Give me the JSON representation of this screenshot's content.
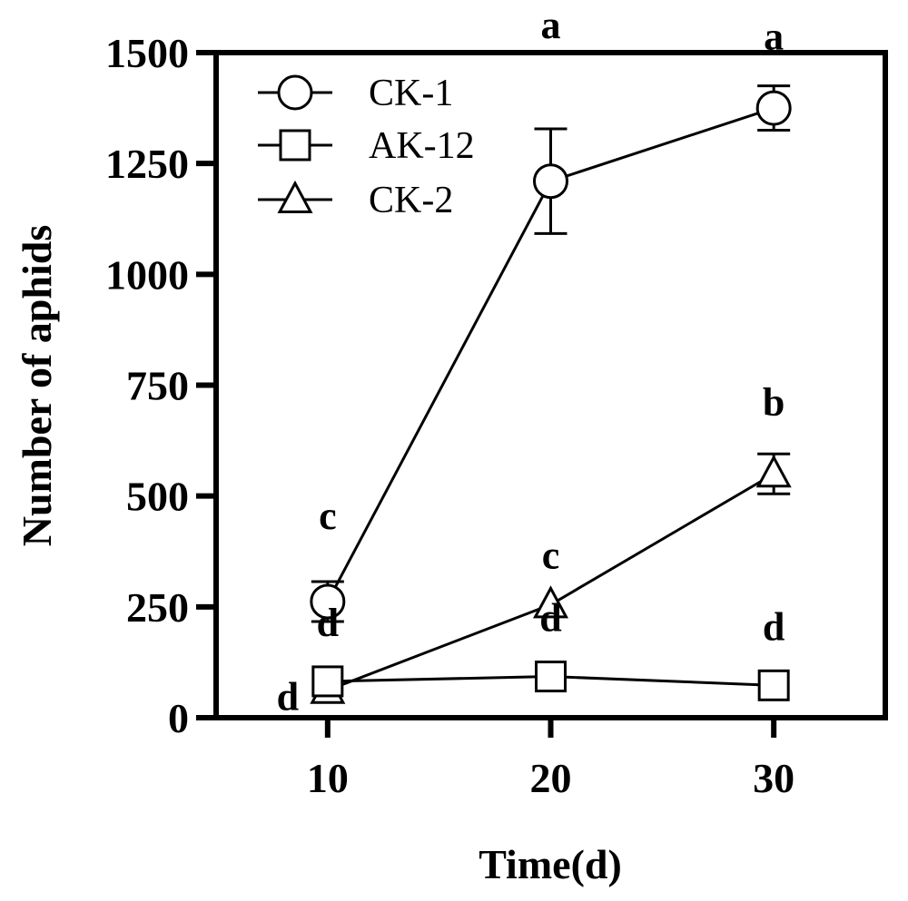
{
  "chart_data": {
    "type": "line",
    "xlabel": "Time(d)",
    "ylabel": "Number of aphids",
    "x": [
      10,
      20,
      30
    ],
    "xlim": [
      5,
      35
    ],
    "ylim": [
      0,
      1500
    ],
    "xticks": [
      10,
      20,
      30
    ],
    "yticks": [
      0,
      250,
      500,
      750,
      1000,
      1250,
      1500
    ],
    "legend_position": "top-left",
    "grid": false,
    "series": [
      {
        "name": "CK-1",
        "marker": "circle",
        "values": [
          262,
          1210,
          1375
        ],
        "errors": [
          45,
          118,
          50
        ],
        "labels": [
          "c",
          "a",
          "a"
        ]
      },
      {
        "name": "AK-12",
        "marker": "square",
        "values": [
          82,
          93,
          73
        ],
        "errors": [
          0,
          0,
          0
        ],
        "labels": [
          "d",
          "d",
          "d"
        ]
      },
      {
        "name": "CK-2",
        "marker": "triangle",
        "values": [
          62,
          255,
          550
        ],
        "errors": [
          0,
          0,
          45
        ],
        "labels": [
          "d",
          "c",
          "b"
        ]
      }
    ]
  }
}
